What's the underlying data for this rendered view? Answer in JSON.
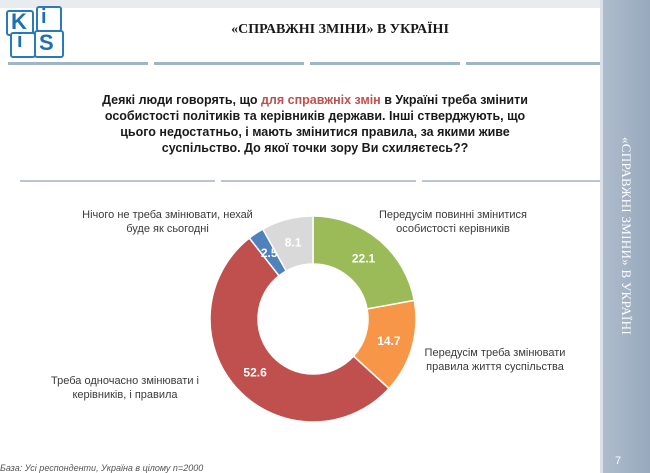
{
  "logo": {
    "letters": [
      "K",
      "i",
      "i",
      "S"
    ]
  },
  "header": {
    "title": "«СПРАВЖНІ ЗМІНИ» В УКРАЇНІ"
  },
  "sidebar": {
    "text": "«СПРАВЖНІ ЗМІНИ» В УКРАЇНІ",
    "page_number": "7"
  },
  "question": {
    "before": "Деякі люди говорять, що ",
    "highlight": "для справжніх змін",
    "after": " в Україні треба змінити особистості політиків та керівників держави. Інші стверджують, що цього недостатньо, і мають змінитися правила, за якими живе суспільство. До якої точки зору Ви схиляєтесь??"
  },
  "chart_data": {
    "type": "pie",
    "donut": true,
    "slices": [
      {
        "value": 22.1,
        "value_label": "22.1",
        "label": "Передусім повинні змінитися особистості керівників",
        "color": "#9bbb59"
      },
      {
        "value": 14.7,
        "value_label": "14.7",
        "label": "Передусім треба змінювати правила життя суспільства",
        "color": "#f79646"
      },
      {
        "value": 52.6,
        "value_label": "52.6",
        "label": "Треба одночасно змінювати і керівників, і правила",
        "color": "#c0504d"
      },
      {
        "value": 2.5,
        "value_label": "2.5",
        "label": "",
        "color": "#4f81bd"
      },
      {
        "value": 8.1,
        "value_label": "8.1",
        "label": "Нічого не треба змінювати, нехай буде як сьогодні",
        "color": "#d9d9d9"
      }
    ]
  },
  "footnote": "База: Усі респонденти, Україна в цілому n=2000"
}
